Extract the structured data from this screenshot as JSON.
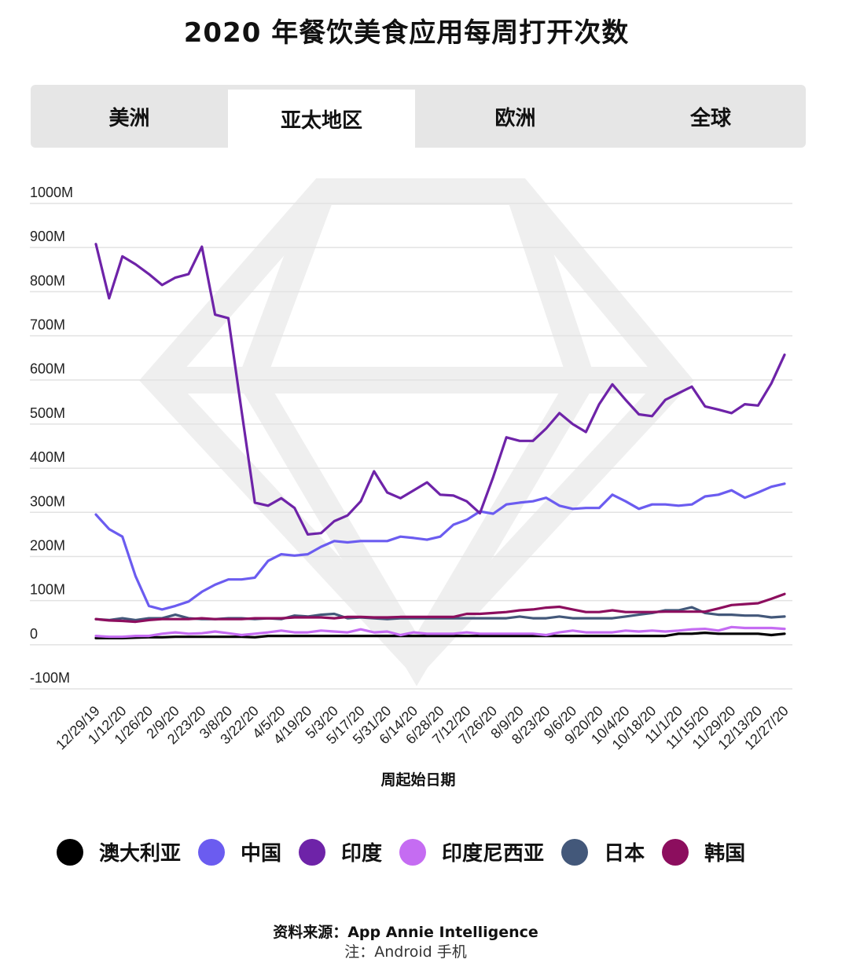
{
  "title": "2020 年餐饮美食应用每周打开次数",
  "tabs": [
    {
      "label": "美洲",
      "active": false
    },
    {
      "label": "亚太地区",
      "active": true
    },
    {
      "label": "欧洲",
      "active": false
    },
    {
      "label": "全球",
      "active": false
    }
  ],
  "footer": {
    "source": "资料来源：App Annie Intelligence",
    "note": "注：Android 手机"
  },
  "chart_data": {
    "type": "line",
    "xlabel": "周起始日期",
    "ylabel": "",
    "ylim": [
      -100,
      1000
    ],
    "yticks": [
      {
        "value": 1000,
        "label": "1000M"
      },
      {
        "value": 900,
        "label": "900M"
      },
      {
        "value": 800,
        "label": "800M"
      },
      {
        "value": 700,
        "label": "700M"
      },
      {
        "value": 600,
        "label": "600M"
      },
      {
        "value": 500,
        "label": "500M"
      },
      {
        "value": 400,
        "label": "400M"
      },
      {
        "value": 300,
        "label": "300M"
      },
      {
        "value": 200,
        "label": "200M"
      },
      {
        "value": 100,
        "label": "100M"
      },
      {
        "value": 0,
        "label": "0"
      },
      {
        "value": -100,
        "label": "-100M"
      }
    ],
    "x": [
      "12/29/19",
      "1/5/20",
      "1/12/20",
      "1/19/20",
      "1/26/20",
      "2/2/20",
      "2/9/20",
      "2/16/20",
      "2/23/20",
      "3/1/20",
      "3/8/20",
      "3/15/20",
      "3/22/20",
      "3/29/20",
      "4/5/20",
      "4/12/20",
      "4/19/20",
      "4/26/20",
      "5/3/20",
      "5/10/20",
      "5/17/20",
      "5/24/20",
      "5/31/20",
      "6/7/20",
      "6/14/20",
      "6/21/20",
      "6/28/20",
      "7/5/20",
      "7/12/20",
      "7/19/20",
      "7/26/20",
      "8/2/20",
      "8/9/20",
      "8/16/20",
      "8/23/20",
      "8/30/20",
      "9/6/20",
      "9/13/20",
      "9/20/20",
      "9/27/20",
      "10/4/20",
      "10/11/20",
      "10/18/20",
      "10/25/20",
      "11/1/20",
      "11/8/20",
      "11/15/20",
      "11/22/20",
      "11/29/20",
      "12/6/20",
      "12/13/20",
      "12/20/20",
      "12/27/20"
    ],
    "xtick_labels": [
      "12/29/19",
      "1/12/20",
      "1/26/20",
      "2/9/20",
      "2/23/20",
      "3/8/20",
      "3/22/20",
      "4/5/20",
      "4/19/20",
      "5/3/20",
      "5/17/20",
      "5/31/20",
      "6/14/20",
      "6/28/20",
      "7/12/20",
      "7/26/20",
      "8/9/20",
      "8/23/20",
      "9/6/20",
      "9/20/20",
      "10/4/20",
      "10/18/20",
      "11/1/20",
      "11/15/20",
      "11/29/20",
      "12/13/20",
      "12/27/20"
    ],
    "grid": true,
    "legend_position": "bottom",
    "series": [
      {
        "name": "澳大利亚",
        "color": "#000000",
        "values": [
          15,
          15,
          15,
          16,
          17,
          17,
          18,
          18,
          18,
          18,
          18,
          18,
          17,
          20,
          20,
          20,
          20,
          20,
          20,
          20,
          20,
          20,
          20,
          20,
          20,
          20,
          20,
          20,
          20,
          20,
          20,
          20,
          20,
          20,
          20,
          20,
          20,
          20,
          20,
          20,
          20,
          20,
          20,
          20,
          25,
          25,
          27,
          25,
          25,
          25,
          25,
          22,
          25
        ]
      },
      {
        "name": "中国",
        "color": "#6b5cf0",
        "values": [
          295,
          262,
          245,
          155,
          88,
          80,
          88,
          98,
          120,
          136,
          148,
          148,
          152,
          190,
          205,
          202,
          205,
          222,
          235,
          232,
          235,
          235,
          235,
          245,
          242,
          238,
          245,
          272,
          283,
          302,
          297,
          318,
          322,
          325,
          333,
          315,
          308,
          310,
          310,
          340,
          325,
          308,
          318,
          318,
          315,
          318,
          336,
          340,
          350,
          333,
          345,
          358,
          365
        ]
      },
      {
        "name": "印度",
        "color": "#6e23a8",
        "values": [
          908,
          785,
          880,
          862,
          840,
          815,
          832,
          840,
          902,
          748,
          740,
          530,
          322,
          315,
          332,
          310,
          250,
          253,
          280,
          293,
          325,
          393,
          345,
          332,
          350,
          368,
          340,
          338,
          325,
          298,
          380,
          470,
          462,
          462,
          490,
          525,
          500,
          482,
          545,
          590,
          555,
          522,
          518,
          555,
          570,
          585,
          540,
          533,
          525,
          545,
          542,
          592,
          657
        ]
      },
      {
        "name": "印度尼西亚",
        "color": "#c56cf2",
        "values": [
          20,
          18,
          18,
          20,
          20,
          25,
          28,
          25,
          26,
          30,
          26,
          22,
          25,
          28,
          32,
          28,
          28,
          32,
          30,
          28,
          35,
          28,
          30,
          22,
          28,
          25,
          25,
          25,
          28,
          25,
          25,
          25,
          25,
          25,
          22,
          28,
          32,
          28,
          28,
          28,
          32,
          30,
          32,
          30,
          32,
          35,
          36,
          32,
          40,
          38,
          38,
          38,
          36
        ]
      },
      {
        "name": "日本",
        "color": "#43587a",
        "values": [
          58,
          56,
          60,
          56,
          60,
          60,
          68,
          60,
          58,
          58,
          60,
          60,
          58,
          60,
          58,
          66,
          64,
          68,
          70,
          60,
          62,
          60,
          58,
          60,
          60,
          60,
          60,
          60,
          60,
          60,
          60,
          60,
          64,
          60,
          60,
          64,
          60,
          60,
          60,
          60,
          64,
          68,
          72,
          78,
          78,
          85,
          72,
          68,
          68,
          66,
          66,
          62,
          64
        ]
      },
      {
        "name": "韩国",
        "color": "#8c0e5e",
        "values": [
          58,
          55,
          54,
          52,
          56,
          58,
          58,
          58,
          60,
          58,
          58,
          58,
          60,
          60,
          60,
          62,
          62,
          62,
          60,
          63,
          63,
          62,
          62,
          63,
          63,
          63,
          63,
          63,
          70,
          70,
          72,
          74,
          78,
          80,
          84,
          86,
          80,
          74,
          74,
          78,
          74,
          74,
          74,
          75,
          75,
          75,
          75,
          82,
          90,
          92,
          94,
          104,
          115
        ]
      }
    ]
  }
}
